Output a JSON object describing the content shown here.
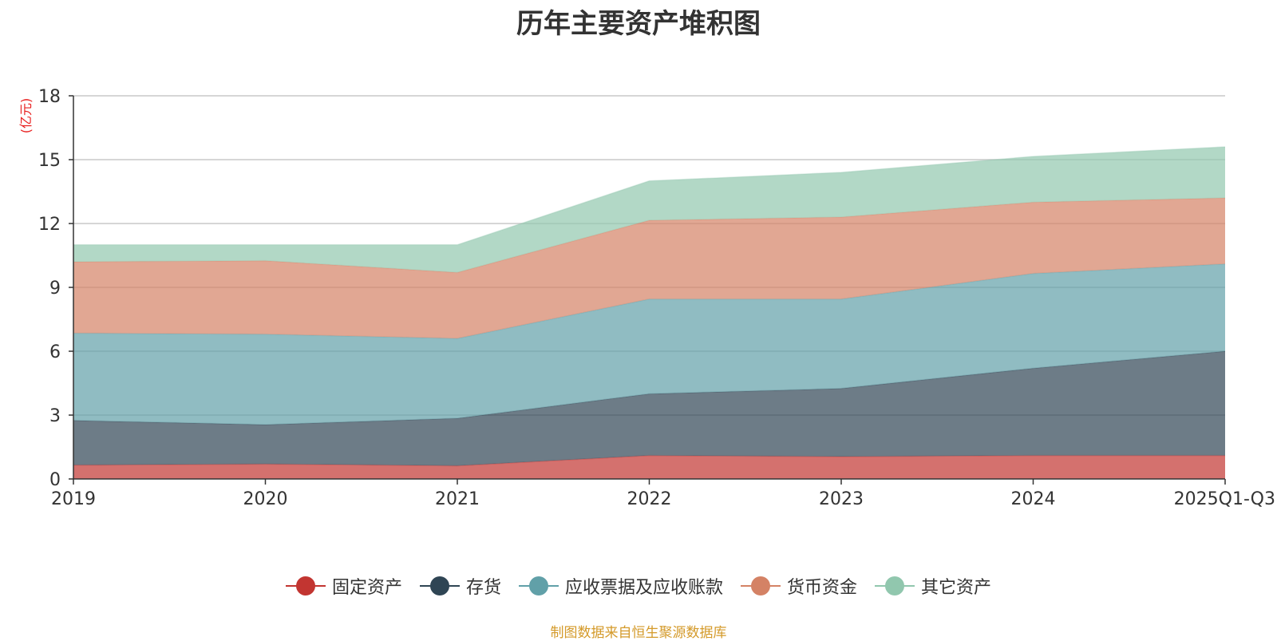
{
  "chart_data": {
    "type": "area",
    "stacked": true,
    "title": "历年主要资产堆积图",
    "ylabel": "(亿元)",
    "xlabel": "",
    "categories": [
      "2019",
      "2020",
      "2021",
      "2022",
      "2023",
      "2024",
      "2025Q1-Q3"
    ],
    "ylim": [
      0,
      18
    ],
    "yticks": [
      0,
      3,
      6,
      9,
      12,
      15,
      18
    ],
    "grid": true,
    "legend_position": "bottom",
    "series": [
      {
        "name": "固定资产",
        "color": "#c23531",
        "values": [
          0.65,
          0.7,
          0.62,
          1.1,
          1.05,
          1.1,
          1.1
        ]
      },
      {
        "name": "存货",
        "color": "#2f4554",
        "values": [
          2.1,
          1.85,
          2.23,
          2.9,
          3.2,
          4.1,
          4.9
        ]
      },
      {
        "name": "应收票据及应收账款",
        "color": "#61a0a8",
        "values": [
          4.1,
          4.25,
          3.75,
          4.45,
          4.2,
          4.45,
          4.1
        ]
      },
      {
        "name": "货币资金",
        "color": "#d48265",
        "values": [
          3.35,
          3.45,
          3.1,
          3.7,
          3.85,
          3.35,
          3.1
        ]
      },
      {
        "name": "其它资产",
        "color": "#91c7ae",
        "values": [
          0.8,
          0.75,
          1.3,
          1.85,
          2.1,
          2.15,
          2.4
        ]
      }
    ],
    "source": "制图数据来自恒生聚源数据库"
  }
}
